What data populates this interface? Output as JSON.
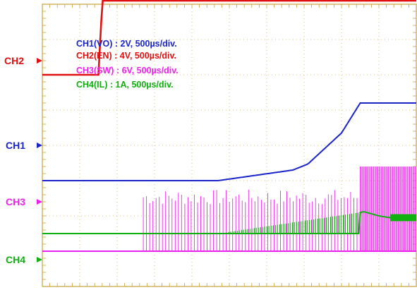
{
  "chart_data": {
    "type": "line",
    "title": "",
    "xlabel": "",
    "ylabel": "",
    "time_per_div": "500µs",
    "x_divisions": 10,
    "y_divisions": 8,
    "grid": true,
    "legend": [
      {
        "text": "CH1(VO) : 2V, 500µs/div.",
        "color": "#1a24c8"
      },
      {
        "text": "CH2(EN) : 4V, 500µs/div.",
        "color": "#e01010"
      },
      {
        "text": "CH3(SW) : 6V, 500µs/div.",
        "color": "#ee22ee"
      },
      {
        "text": "CH4(IL) : 1A, 500µs/div.",
        "color": "#10b010"
      }
    ],
    "series": [
      {
        "name": "CH1",
        "unit": "V",
        "color": "#1a24c8",
        "x": [
          0,
          0.47,
          0.67,
          0.71,
          0.8,
          0.85,
          1.0
        ],
        "y": [
          0.0,
          0.0,
          0.3,
          0.47,
          1.35,
          2.2,
          2.2
        ]
      },
      {
        "name": "CH2",
        "unit": "V",
        "color": "#e01010",
        "x": [
          0,
          0.15,
          0.16,
          0.16,
          1.0
        ],
        "y": [
          0.0,
          0.0,
          2.0,
          2.1,
          2.1
        ]
      },
      {
        "name": "CH3",
        "unit": "V",
        "color": "#ee22ee",
        "x": [
          0,
          0.27,
          0.47,
          0.62,
          0.85,
          1.0
        ],
        "y": [
          0.0,
          0.0,
          0.0,
          1.2,
          1.9,
          1.9
        ],
        "switching": [
          [
            0.27,
            0.85,
            1.75
          ],
          [
            0.85,
            1.0,
            2.4
          ]
        ]
      },
      {
        "name": "CH4",
        "unit": "A",
        "color": "#10b010",
        "x": [
          0,
          0.47,
          0.85,
          0.86,
          0.9,
          0.93,
          1.0
        ],
        "y": [
          0.0,
          0.0,
          0.6,
          0.62,
          0.5,
          0.45,
          0.45
        ],
        "ripple": [
          [
            0.47,
            0.85,
            0.6
          ],
          [
            0.93,
            1.0,
            0.1
          ]
        ]
      }
    ],
    "channel_labels": [
      {
        "text": "CH2",
        "color": "#e01010"
      },
      {
        "text": "CH1",
        "color": "#1a24c8"
      },
      {
        "text": "CH3",
        "color": "#ee22ee"
      },
      {
        "text": "CH4",
        "color": "#10b010"
      }
    ]
  }
}
